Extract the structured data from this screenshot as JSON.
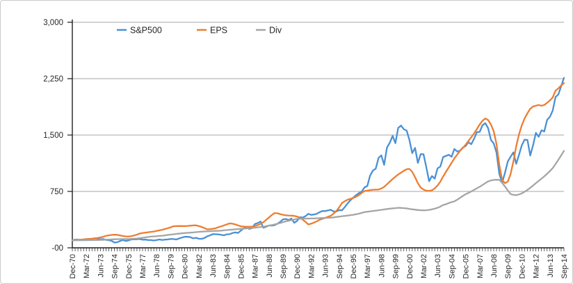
{
  "chart_data": {
    "type": "line",
    "title": "",
    "xlabel": "",
    "ylabel": "",
    "x_description": "quarterly, Dec-1970 through Sep-2014, every 5th quarter labeled",
    "legend_position": "top-inside",
    "grid": "horizontal",
    "y_axis": {
      "min": 0,
      "max": 3000,
      "tick_step": 750
    },
    "y_tick_labels": [
      "-00",
      "750",
      "1,500",
      "2,250",
      "3,000"
    ],
    "x_tick_labels": [
      "Dec-70",
      "Mar-72",
      "Jun-73",
      "Sep-74",
      "Dec-75",
      "Mar-77",
      "Jun-78",
      "Sep-79",
      "Dec-80",
      "Mar-82",
      "Jun-83",
      "Sep-84",
      "Dec-85",
      "Mar-87",
      "Jun-88",
      "Sep-89",
      "Dec-90",
      "Mar-92",
      "Jun-93",
      "Sep-94",
      "Dec-95",
      "Mar-97",
      "Jun-98",
      "Sep-99",
      "Dec-00",
      "Mar-02",
      "Jun-03",
      "Sep-04",
      "Dec-05",
      "Mar-07",
      "Jun-08",
      "Sep-09",
      "Dec-10",
      "Mar-12",
      "Jun-13",
      "Sep-14"
    ],
    "x_labeled_every_n_points": 5,
    "series": [
      {
        "name": "S&P500",
        "color": "#4A90D5",
        "values": [
          100,
          109,
          108,
          106,
          111,
          116,
          117,
          119,
          128,
          121,
          113,
          118,
          105,
          101,
          93,
          69,
          74,
          91,
          103,
          91,
          98,
          111,
          113,
          114,
          117,
          107,
          109,
          104,
          103,
          97,
          103,
          111,
          104,
          109,
          111,
          118,
          117,
          110,
          124,
          136,
          147,
          146,
          142,
          126,
          133,
          121,
          119,
          130,
          153,
          165,
          182,
          181,
          179,
          172,
          166,
          180,
          181,
          196,
          205,
          198,
          229,
          259,
          272,
          251,
          263,
          317,
          330,
          349,
          268,
          281,
          297,
          295,
          301,
          320,
          345,
          379,
          383,
          369,
          389,
          332,
          358,
          407,
          403,
          421,
          452,
          438,
          443,
          453,
          473,
          490,
          489,
          498,
          506,
          484,
          482,
          502,
          498,
          543,
          591,
          634,
          668,
          700,
          728,
          746,
          804,
          822,
          960,
          1028,
          1053,
          1196,
          1230,
          1104,
          1334,
          1396,
          1490,
          1392,
          1594,
          1626,
          1578,
          1559,
          1433,
          1259,
          1329,
          1130,
          1246,
          1245,
          1074,
          885,
          955,
          920,
          1057,
          1081,
          1207,
          1222,
          1238,
          1210,
          1315,
          1281,
          1293,
          1333,
          1355,
          1405,
          1378,
          1450,
          1539,
          1542,
          1631,
          1657,
          1593,
          1435,
          1389,
          1266,
          980,
          866,
          998,
          1147,
          1210,
          1269,
          1118,
          1238,
          1365,
          1439,
          1433,
          1228,
          1365,
          1529,
          1478,
          1563,
          1548,
          1703,
          1743,
          1825,
          2006,
          2040,
          2150,
          2260
        ]
      },
      {
        "name": "EPS",
        "color": "#ED7D31",
        "values": [
          100,
          103,
          106,
          108,
          111,
          114,
          118,
          121,
          125,
          131,
          139,
          147,
          159,
          166,
          171,
          174,
          173,
          165,
          157,
          152,
          150,
          156,
          165,
          175,
          190,
          196,
          202,
          207,
          212,
          217,
          224,
          232,
          240,
          250,
          261,
          272,
          286,
          289,
          290,
          289,
          289,
          291,
          294,
          297,
          299,
          290,
          278,
          263,
          246,
          248,
          253,
          260,
          274,
          285,
          298,
          312,
          324,
          320,
          311,
          298,
          285,
          282,
          280,
          280,
          282,
          290,
          302,
          319,
          341,
          372,
          404,
          436,
          462,
          459,
          448,
          439,
          432,
          430,
          428,
          424,
          416,
          400,
          375,
          345,
          311,
          320,
          335,
          352,
          372,
          385,
          398,
          412,
          427,
          455,
          490,
          540,
          596,
          620,
          640,
          652,
          662,
          680,
          700,
          730,
          755,
          762,
          768,
          772,
          774,
          775,
          790,
          810,
          845,
          880,
          915,
          945,
          975,
          1000,
          1025,
          1045,
          1050,
          1010,
          940,
          860,
          800,
          775,
          760,
          758,
          765,
          790,
          830,
          880,
          950,
          1010,
          1070,
          1130,
          1190,
          1240,
          1290,
          1330,
          1370,
          1420,
          1470,
          1520,
          1580,
          1640,
          1690,
          1720,
          1700,
          1640,
          1550,
          1380,
          1100,
          900,
          860,
          880,
          980,
          1150,
          1350,
          1510,
          1630,
          1720,
          1790,
          1850,
          1880,
          1890,
          1900,
          1890,
          1900,
          1930,
          1960,
          2000,
          2090,
          2120,
          2160,
          2190
        ]
      },
      {
        "name": "Div",
        "color": "#A5A5A5",
        "values": [
          100,
          100,
          100,
          100,
          101,
          101,
          102,
          102,
          103,
          104,
          105,
          106,
          108,
          110,
          112,
          114,
          115,
          116,
          116,
          117,
          117,
          119,
          121,
          124,
          129,
          134,
          139,
          144,
          149,
          152,
          155,
          158,
          161,
          166,
          171,
          176,
          180,
          185,
          189,
          193,
          196,
          199,
          202,
          205,
          208,
          212,
          215,
          218,
          219,
          221,
          223,
          225,
          226,
          229,
          232,
          236,
          240,
          243,
          246,
          249,
          252,
          255,
          258,
          261,
          264,
          268,
          272,
          277,
          281,
          288,
          295,
          302,
          310,
          320,
          330,
          342,
          352,
          360,
          368,
          376,
          385,
          387,
          389,
          390,
          389,
          390,
          391,
          393,
          394,
          396,
          398,
          399,
          401,
          405,
          410,
          415,
          420,
          424,
          429,
          434,
          439,
          446,
          454,
          464,
          475,
          480,
          485,
          490,
          494,
          500,
          505,
          510,
          516,
          520,
          524,
          528,
          532,
          531,
          528,
          524,
          518,
          512,
          507,
          503,
          500,
          498,
          500,
          505,
          512,
          520,
          532,
          548,
          569,
          580,
          595,
          607,
          618,
          640,
          665,
          690,
          713,
          730,
          750,
          770,
          792,
          812,
          835,
          860,
          883,
          895,
          903,
          906,
          904,
          865,
          815,
          765,
          715,
          705,
          700,
          710,
          724,
          745,
          770,
          798,
          829,
          860,
          890,
          920,
          950,
          985,
          1020,
          1060,
          1114,
          1170,
          1230,
          1290
        ]
      }
    ]
  },
  "colors": {
    "background": "#ffffff",
    "frame_border": "#c9c9c9",
    "axis": "#1f1f1f",
    "gridline": "#a6a6a6",
    "tick_text": "#262626",
    "legend_text": "#262626"
  }
}
